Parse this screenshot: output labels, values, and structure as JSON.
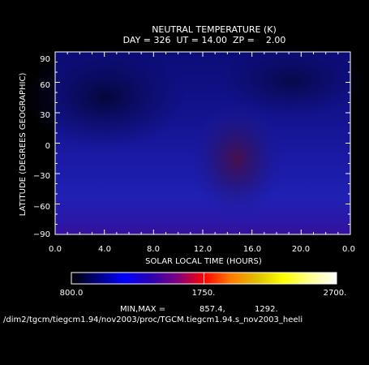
{
  "chart_data": {
    "type": "heatmap",
    "title": "NEUTRAL TEMPERATURE (K)",
    "subtitle": "DAY = 326  UT = 14.00  ZP =    2.00",
    "xlabel": "SOLAR LOCAL TIME (HOURS)",
    "ylabel": "LATITUDE (DEGREES GEOGRAPHIC)",
    "xlim": [
      0,
      24
    ],
    "ylim": [
      -90,
      90
    ],
    "x_tick_labels": [
      "0.0",
      "4.0",
      "8.0",
      "12.0",
      "16.0",
      "20.0",
      "0.0"
    ],
    "y_tick_labels": [
      "90",
      "60",
      "30",
      "0",
      "−30",
      "−60",
      "−90"
    ],
    "colorbar": {
      "range": [
        800.0,
        2700.0
      ],
      "labels": [
        "800.0",
        "1750.",
        "2700."
      ]
    },
    "min_max_label": "MIN,MAX =",
    "min_value": "857.4,",
    "max_value": "1292.",
    "footer_path": "/dim2/tgcm/tiegcm1.94/nov2003/proc/TGCM.tiegcm1.94.s_nov2003_heeli"
  },
  "colors": {
    "background": "#000000",
    "foreground": "#ffffff"
  }
}
